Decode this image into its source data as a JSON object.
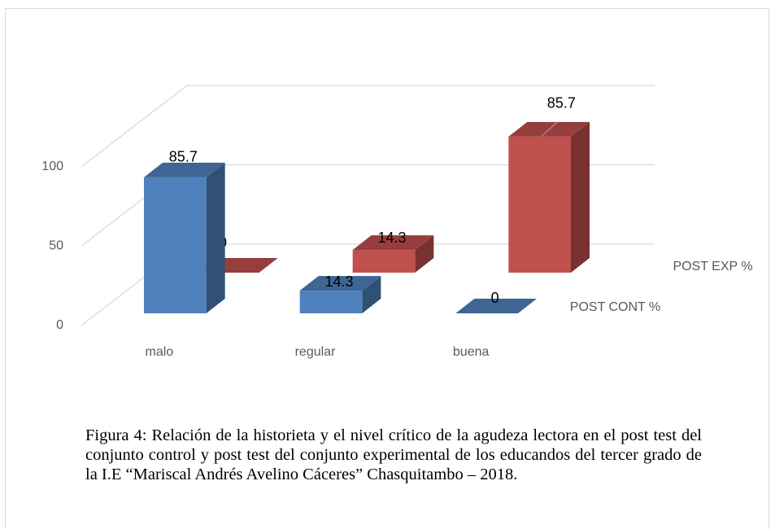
{
  "chart_data": {
    "type": "bar3d",
    "categories": [
      "malo",
      "regular",
      "buena"
    ],
    "series": [
      {
        "name": "POST CONT %",
        "color": "#4f81bd",
        "values": [
          85.7,
          14.3,
          0
        ]
      },
      {
        "name": "POST EXP %",
        "color": "#c0504d",
        "values": [
          0,
          14.3,
          85.7
        ]
      }
    ],
    "ylim": [
      0,
      100
    ],
    "yticks": [
      0,
      50,
      100
    ],
    "grid": true
  },
  "caption": "Figura 4: Relación de la historieta y el nivel crítico de la agudeza lectora en el post test del conjunto control y post test del conjunto experimental de los educandos del tercer grado de la I.E “Mariscal Andrés Avelino Cáceres” Chasquitambo – 2018."
}
